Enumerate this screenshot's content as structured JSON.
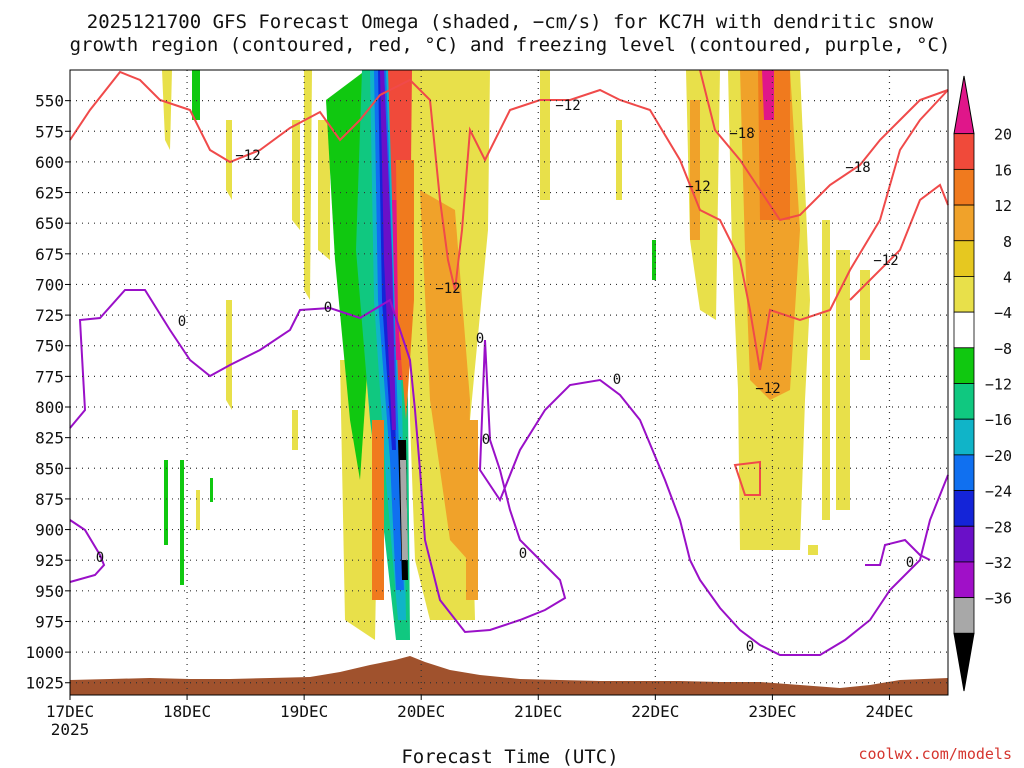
{
  "chart_data": {
    "type": "heatmap",
    "title_lines": [
      "2025121700 GFS Forecast Omega (shaded, −cm/s) for KC7H with dendritic snow",
      "growth region (contoured, red, °C) and freezing level (contoured, purple, °C)"
    ],
    "xlabel": "Forecast Time (UTC)",
    "ylabel": "",
    "credit": "coolwx.com/models",
    "x_ticks": [
      {
        "label": "17DEC",
        "sub": "2025",
        "t": 0
      },
      {
        "label": "18DEC",
        "t": 24
      },
      {
        "label": "19DEC",
        "t": 48
      },
      {
        "label": "20DEC",
        "t": 72
      },
      {
        "label": "21DEC",
        "t": 96
      },
      {
        "label": "22DEC",
        "t": 120
      },
      {
        "label": "23DEC",
        "t": 144
      },
      {
        "label": "24DEC",
        "t": 168
      }
    ],
    "x_range_hours": [
      0,
      180
    ],
    "y_ticks": [
      "550",
      "575",
      "600",
      "625",
      "650",
      "675",
      "700",
      "725",
      "750",
      "775",
      "800",
      "825",
      "850",
      "875",
      "900",
      "925",
      "950",
      "975",
      "1000",
      "1025"
    ],
    "y_range_hpa": [
      525,
      1035
    ],
    "grid": true,
    "colorbar": {
      "labels": [
        "20",
        "16",
        "12",
        "8",
        "4",
        "−4",
        "−8",
        "−12",
        "−16",
        "−20",
        "−24",
        "−28",
        "−32",
        "−36"
      ],
      "bins": [
        {
          "color": "#e0168a"
        },
        {
          "color": "#f04a3a"
        },
        {
          "color": "#f07a1e"
        },
        {
          "color": "#f0a22a"
        },
        {
          "color": "#e6c820"
        },
        {
          "color": "#e8e04a"
        },
        {
          "color": "#ffffff"
        },
        {
          "color": "#10c810"
        },
        {
          "color": "#10c880"
        },
        {
          "color": "#10b4c8"
        },
        {
          "color": "#1070f0"
        },
        {
          "color": "#1424d8"
        },
        {
          "color": "#6a10c8"
        },
        {
          "color": "#a010c8"
        },
        {
          "color": "#a8a8a8"
        },
        {
          "color": "#000000"
        }
      ]
    },
    "terrain_color": "#a0522d",
    "contours": {
      "dgz_color": "#f04a4a",
      "freezing_color": "#9a10c8",
      "dgz_labels": [
        "−12",
        "−12",
        "−12",
        "−18",
        "−12",
        "−18",
        "−12",
        "−12"
      ],
      "freezing_labels": [
        "0",
        "0",
        "0",
        "0",
        "0",
        "0",
        "0",
        "0",
        "0"
      ]
    }
  }
}
